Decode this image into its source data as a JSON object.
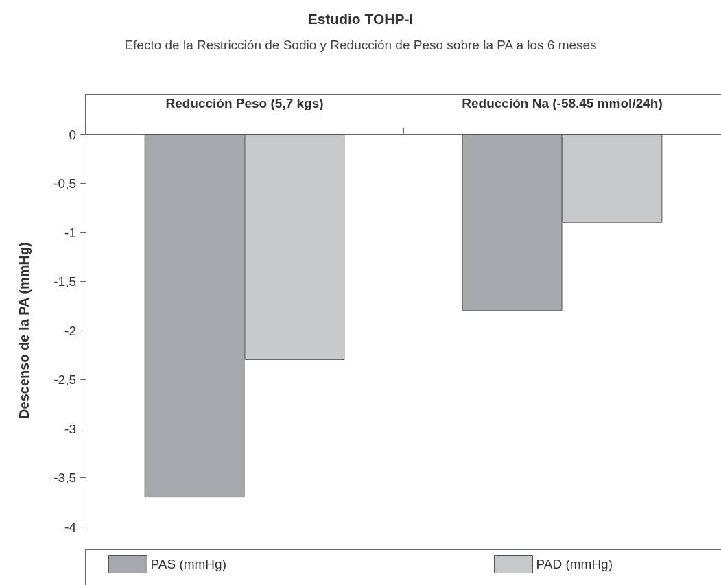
{
  "chart_data": {
    "type": "bar",
    "title": "Estudio TOHP-I",
    "subtitle": "Efecto de la Restricción de Sodio y Reducción de Peso sobre la PA a los 6 meses",
    "ylabel": "Descenso de la PA (mmHg)",
    "categories": [
      "Reducción Peso (5,7 kgs)",
      "Reducción Na (-58.45 mmol/24h)"
    ],
    "series": [
      {
        "name": "PAS (mmHg)",
        "color": "#a7a8ac",
        "values": [
          -3.7,
          -1.8
        ]
      },
      {
        "name": "PAD (mmHg)",
        "color": "#c8c9cb",
        "values": [
          -2.3,
          -0.9
        ]
      }
    ],
    "ylim": [
      -4,
      0
    ],
    "yticks": [
      0,
      {
        "value": -0.5,
        "label": "-0,5"
      },
      -1,
      {
        "value": -1.5,
        "label": "-1,5"
      },
      -2,
      {
        "value": -2.5,
        "label": "-2,5"
      },
      -3,
      {
        "value": -3.5,
        "label": "-3,5"
      },
      -4
    ],
    "grid": false,
    "legend": "bottom"
  }
}
